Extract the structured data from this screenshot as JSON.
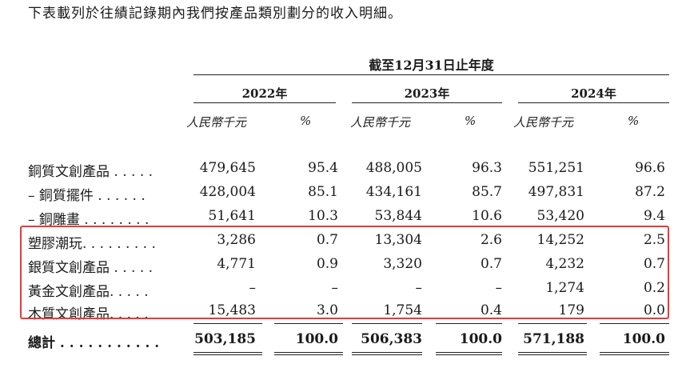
{
  "intro": "下表載列於往績記錄期內我們按產品類別劃分的收入明細。",
  "period_header": "截至12月31日止年度",
  "years": [
    "2022年",
    "2023年",
    "2024年"
  ],
  "unit_labels": [
    "人民幣千元",
    "%",
    "人民幣千元",
    "%",
    "人民幣千元",
    "%"
  ],
  "rows": [
    {
      "label": "銅質文創產品 . . . . .",
      "values": [
        "479,645",
        "95.4",
        "488,005",
        "96.3",
        "551,251",
        "96.6"
      ]
    },
    {
      "label": "– 銅質擺件 . . . . . .",
      "values": [
        "428,004",
        "85.1",
        "434,161",
        "85.7",
        "497,831",
        "87.2"
      ]
    },
    {
      "label": "– 銅雕畫 . . . . . . . .",
      "values": [
        "51,641",
        "10.3",
        "53,844",
        "10.6",
        "53,420",
        "9.4"
      ]
    },
    {
      "label": "塑膠潮玩. . . . . . . . .",
      "values": [
        "3,286",
        "0.7",
        "13,304",
        "2.6",
        "14,252",
        "2.5"
      ]
    },
    {
      "label": "銀質文創產品 . . . . .",
      "values": [
        "4,771",
        "0.9",
        "3,320",
        "0.7",
        "4,232",
        "0.7"
      ]
    },
    {
      "label": "黃金文創產品. . . . .",
      "values": [
        "–",
        "–",
        "–",
        "–",
        "1,274",
        "0.2"
      ]
    },
    {
      "label": "木質文創產品. . . . .",
      "values": [
        "15,483",
        "3.0",
        "1,754",
        "0.4",
        "179",
        "0.0"
      ]
    }
  ],
  "total": {
    "label": "總計 . . . . . . . . . . .",
    "values": [
      "503,185",
      "100.0",
      "506,383",
      "100.0",
      "571,188",
      "100.0"
    ]
  }
}
